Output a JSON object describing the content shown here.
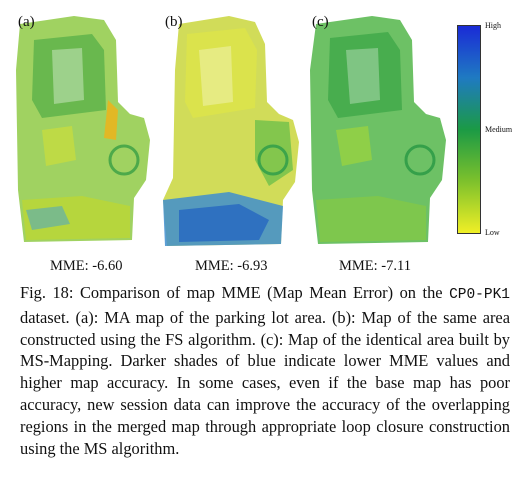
{
  "panels": [
    {
      "label": "(a)",
      "mme": "MME: -6.60",
      "tint": "#7cc43a",
      "accent": "#e9c41f"
    },
    {
      "label": "(b)",
      "mme": "MME: -6.93",
      "tint": "#c8d632",
      "accent": "#2f7fc8"
    },
    {
      "label": "(c)",
      "mme": "MME: -7.11",
      "tint": "#3fb04a",
      "accent": "#9ed43c"
    }
  ],
  "colorbar": {
    "high": "High",
    "medium": "Medium",
    "low": "Low"
  },
  "caption": {
    "fig_label": "Fig. 18: Comparison of map MME (Map Mean Error) on the",
    "dataset": "CP0-PK1",
    "rest": "dataset. (a): MA map of the parking lot area. (b): Map of the same area constructed using the FS algorithm. (c): Map of the identical area built by MS-Mapping. Darker shades of blue indicate lower MME values and higher map accuracy. In some cases, even if the base map has poor accuracy, new session data can improve the accuracy of the overlapping regions in the merged map through appropriate loop closure construction using the MS algorithm."
  }
}
